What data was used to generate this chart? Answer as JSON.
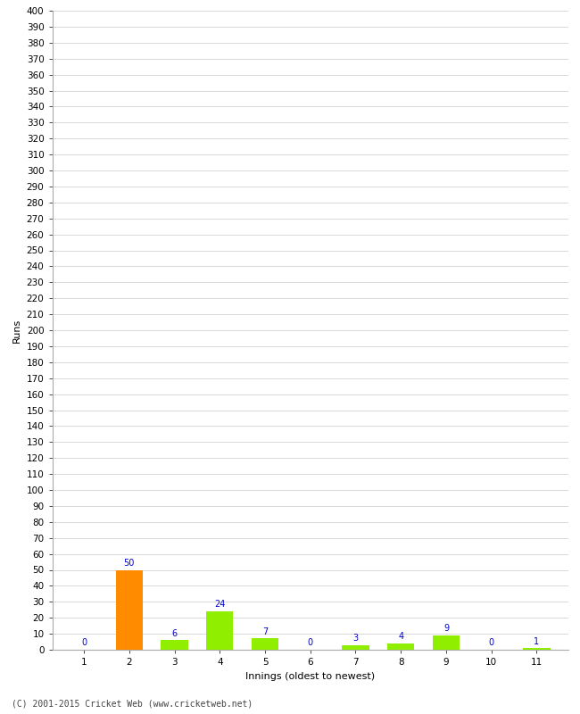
{
  "xlabel": "Innings (oldest to newest)",
  "ylabel": "Runs",
  "categories": [
    "1",
    "2",
    "3",
    "4",
    "5",
    "6",
    "7",
    "8",
    "9",
    "10",
    "11"
  ],
  "values": [
    0,
    50,
    6,
    24,
    7,
    0,
    3,
    4,
    9,
    0,
    1
  ],
  "bar_colors": [
    "#90ee00",
    "#ff8c00",
    "#90ee00",
    "#90ee00",
    "#90ee00",
    "#90ee00",
    "#90ee00",
    "#90ee00",
    "#90ee00",
    "#90ee00",
    "#90ee00"
  ],
  "ylim": [
    0,
    400
  ],
  "yticks": [
    0,
    10,
    20,
    30,
    40,
    50,
    60,
    70,
    80,
    90,
    100,
    110,
    120,
    130,
    140,
    150,
    160,
    170,
    180,
    190,
    200,
    210,
    220,
    230,
    240,
    250,
    260,
    270,
    280,
    290,
    300,
    310,
    320,
    330,
    340,
    350,
    360,
    370,
    380,
    390,
    400
  ],
  "label_color": "#0000cc",
  "label_fontsize": 7,
  "axis_fontsize": 7.5,
  "ylabel_fontsize": 8,
  "xlabel_fontsize": 8,
  "background_color": "#ffffff",
  "grid_color": "#d8d8d8",
  "footer": "(C) 2001-2015 Cricket Web (www.cricketweb.net)"
}
